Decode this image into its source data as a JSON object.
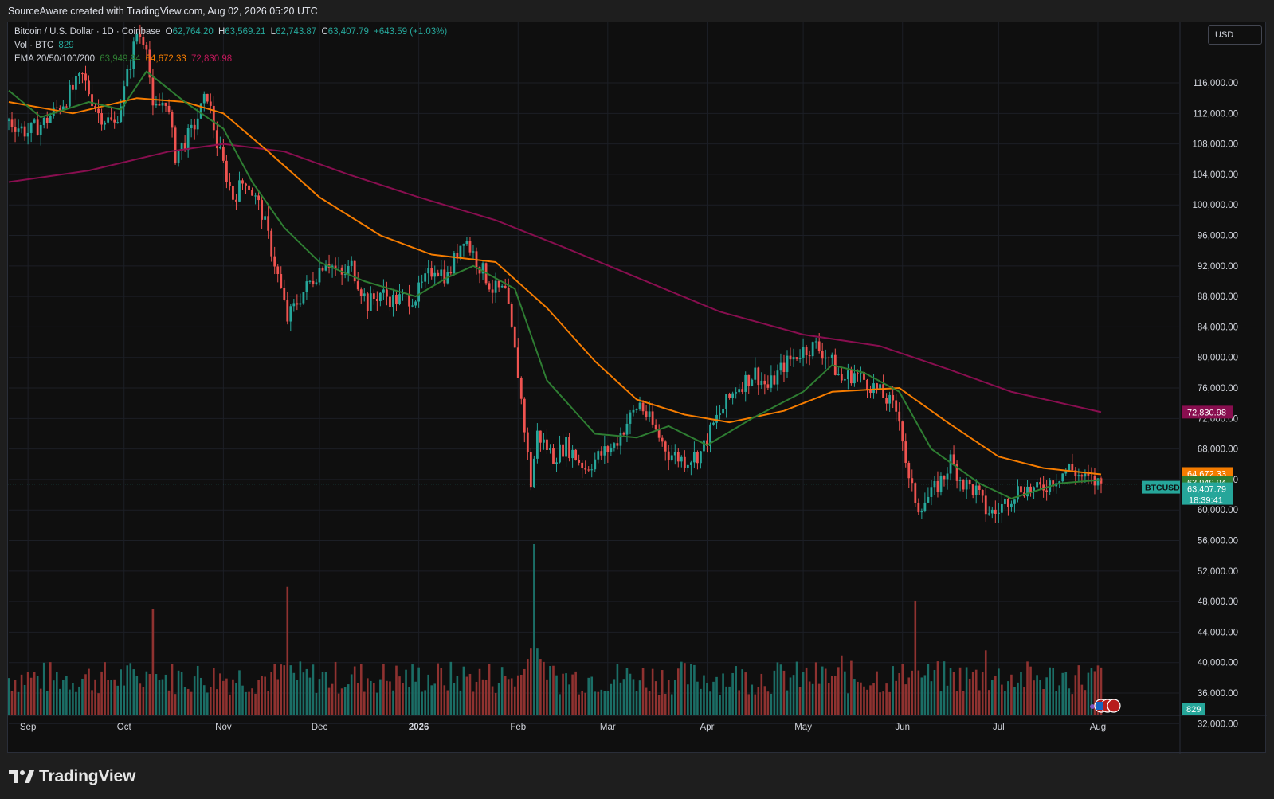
{
  "header": {
    "attribution": "SourceAware created with TradingView.com, Aug 02, 2026 05:20 UTC"
  },
  "legend": {
    "title": "Bitcoin / U.S. Dollar · 1D · Coinbase",
    "o_label": "O",
    "o_value": "62,764.20",
    "h_label": "H",
    "h_value": "63,569.21",
    "l_label": "L",
    "l_value": "62,743.87",
    "c_label": "C",
    "c_value": "63,407.79",
    "change": "+643.59 (+1.03%)",
    "vol_label": "Vol · BTC",
    "vol_value": "829",
    "ema_label": "EMA 20/50/100/200",
    "ema20_value": "63,949.94",
    "ema50_value": "64,672.33",
    "ema200_value": "72,830.98"
  },
  "currency": "USD",
  "symbol_tag": "BTCUSD",
  "countdown": "18:39:41",
  "brand": "TradingView",
  "colors": {
    "up": "#26a69a",
    "down": "#ef5350",
    "ema20": "#2e7d32",
    "ema50": "#f57c00",
    "ema200": "#880e4f",
    "vol_up": "#1b6e66",
    "vol_down": "#8f3230"
  },
  "chart_data": {
    "type": "candlestick",
    "title": "Bitcoin / U.S. Dollar · 1D · Coinbase",
    "y_axis": {
      "ylim": [
        29000,
        122000
      ],
      "ticks": [
        32000,
        36000,
        40000,
        44000,
        48000,
        52000,
        56000,
        60000,
        64000,
        68000,
        72000,
        76000,
        80000,
        84000,
        88000,
        92000,
        96000,
        100000,
        104000,
        108000,
        112000,
        116000
      ],
      "tick_labels": [
        "32,000.00",
        "36,000.00",
        "40,000.00",
        "44,000.00",
        "48,000.00",
        "52,000.00",
        "56,000.00",
        "60,000.00",
        "64,000.00",
        "68,000.00",
        "72,000.00",
        "76,000.00",
        "80,000.00",
        "84,000.00",
        "88,000.00",
        "92,000.00",
        "96,000.00",
        "100,000.00",
        "104,000.00",
        "108,000.00",
        "112,000.00",
        "116,000.00"
      ]
    },
    "x_axis": {
      "start": "2025-08-26",
      "end": "2026-08-02",
      "month_labels": [
        {
          "date": "2025-09-01",
          "label": "Sep"
        },
        {
          "date": "2025-10-01",
          "label": "Oct"
        },
        {
          "date": "2025-11-01",
          "label": "Nov"
        },
        {
          "date": "2025-12-01",
          "label": "Dec"
        },
        {
          "date": "2026-01-01",
          "label": "2026"
        },
        {
          "date": "2026-02-01",
          "label": "Feb"
        },
        {
          "date": "2026-03-01",
          "label": "Mar"
        },
        {
          "date": "2026-04-01",
          "label": "Apr"
        },
        {
          "date": "2026-05-01",
          "label": "May"
        },
        {
          "date": "2026-06-01",
          "label": "Jun"
        },
        {
          "date": "2026-07-01",
          "label": "Jul"
        },
        {
          "date": "2026-08-01",
          "label": "Aug"
        }
      ]
    },
    "close_path": [
      {
        "date": "2025-08-26",
        "close": 111000
      },
      {
        "date": "2025-09-01",
        "close": 109500
      },
      {
        "date": "2025-09-06",
        "close": 110800
      },
      {
        "date": "2025-09-12",
        "close": 113500
      },
      {
        "date": "2025-09-18",
        "close": 116800
      },
      {
        "date": "2025-09-23",
        "close": 112000
      },
      {
        "date": "2025-09-28",
        "close": 110500
      },
      {
        "date": "2025-10-01",
        "close": 115000
      },
      {
        "date": "2025-10-05",
        "close": 122500
      },
      {
        "date": "2025-10-08",
        "close": 121500
      },
      {
        "date": "2025-10-10",
        "close": 112000
      },
      {
        "date": "2025-10-14",
        "close": 114000
      },
      {
        "date": "2025-10-17",
        "close": 106500
      },
      {
        "date": "2025-10-22",
        "close": 109500
      },
      {
        "date": "2025-10-27",
        "close": 114500
      },
      {
        "date": "2025-10-30",
        "close": 108000
      },
      {
        "date": "2025-11-04",
        "close": 101000
      },
      {
        "date": "2025-11-08",
        "close": 103500
      },
      {
        "date": "2025-11-13",
        "close": 99000
      },
      {
        "date": "2025-11-17",
        "close": 92500
      },
      {
        "date": "2025-11-21",
        "close": 85000
      },
      {
        "date": "2025-11-25",
        "close": 88000
      },
      {
        "date": "2025-11-30",
        "close": 91000
      },
      {
        "date": "2025-12-03",
        "close": 93000
      },
      {
        "date": "2025-12-08",
        "close": 90500
      },
      {
        "date": "2025-12-11",
        "close": 92000
      },
      {
        "date": "2025-12-16",
        "close": 87000
      },
      {
        "date": "2025-12-20",
        "close": 88500
      },
      {
        "date": "2025-12-24",
        "close": 87500
      },
      {
        "date": "2025-12-31",
        "close": 88000
      },
      {
        "date": "2026-01-06",
        "close": 92000
      },
      {
        "date": "2026-01-10",
        "close": 90500
      },
      {
        "date": "2026-01-15",
        "close": 96000
      },
      {
        "date": "2026-01-20",
        "close": 92000
      },
      {
        "date": "2026-01-24",
        "close": 89000
      },
      {
        "date": "2026-01-28",
        "close": 88500
      },
      {
        "date": "2026-02-01",
        "close": 78000
      },
      {
        "date": "2026-02-05",
        "close": 63500
      },
      {
        "date": "2026-02-07",
        "close": 70000
      },
      {
        "date": "2026-02-12",
        "close": 67000
      },
      {
        "date": "2026-02-16",
        "close": 68500
      },
      {
        "date": "2026-02-22",
        "close": 65500
      },
      {
        "date": "2026-02-26",
        "close": 67000
      },
      {
        "date": "2026-03-03",
        "close": 68500
      },
      {
        "date": "2026-03-07",
        "close": 71500
      },
      {
        "date": "2026-03-11",
        "close": 74000
      },
      {
        "date": "2026-03-15",
        "close": 71000
      },
      {
        "date": "2026-03-20",
        "close": 67500
      },
      {
        "date": "2026-03-25",
        "close": 66500
      },
      {
        "date": "2026-03-30",
        "close": 67500
      },
      {
        "date": "2026-04-04",
        "close": 72000
      },
      {
        "date": "2026-04-10",
        "close": 76000
      },
      {
        "date": "2026-04-16",
        "close": 78000
      },
      {
        "date": "2026-04-20",
        "close": 76000
      },
      {
        "date": "2026-04-25",
        "close": 79000
      },
      {
        "date": "2026-05-01",
        "close": 81000
      },
      {
        "date": "2026-05-05",
        "close": 81500
      },
      {
        "date": "2026-05-09",
        "close": 80000
      },
      {
        "date": "2026-05-13",
        "close": 77000
      },
      {
        "date": "2026-05-17",
        "close": 78000
      },
      {
        "date": "2026-05-22",
        "close": 76500
      },
      {
        "date": "2026-05-27",
        "close": 74500
      },
      {
        "date": "2026-05-31",
        "close": 72500
      },
      {
        "date": "2026-06-03",
        "close": 63500
      },
      {
        "date": "2026-06-06",
        "close": 60500
      },
      {
        "date": "2026-06-10",
        "close": 62000
      },
      {
        "date": "2026-06-14",
        "close": 64500
      },
      {
        "date": "2026-06-16",
        "close": 66500
      },
      {
        "date": "2026-06-20",
        "close": 63500
      },
      {
        "date": "2026-06-24",
        "close": 62500
      },
      {
        "date": "2026-06-27",
        "close": 60000
      },
      {
        "date": "2026-06-30",
        "close": 59500
      },
      {
        "date": "2026-07-04",
        "close": 61500
      },
      {
        "date": "2026-07-08",
        "close": 63000
      },
      {
        "date": "2026-07-13",
        "close": 62500
      },
      {
        "date": "2026-07-18",
        "close": 64000
      },
      {
        "date": "2026-07-23",
        "close": 65500
      },
      {
        "date": "2026-07-28",
        "close": 64000
      },
      {
        "date": "2026-08-02",
        "close": 63408
      }
    ],
    "ema20": [
      {
        "date": "2025-08-26",
        "v": 115000
      },
      {
        "date": "2025-09-05",
        "v": 111500
      },
      {
        "date": "2025-09-20",
        "v": 113500
      },
      {
        "date": "2025-09-30",
        "v": 112500
      },
      {
        "date": "2025-10-08",
        "v": 117500
      },
      {
        "date": "2025-10-20",
        "v": 113500
      },
      {
        "date": "2025-11-01",
        "v": 110000
      },
      {
        "date": "2025-11-10",
        "v": 103000
      },
      {
        "date": "2025-11-20",
        "v": 97000
      },
      {
        "date": "2025-12-01",
        "v": 92500
      },
      {
        "date": "2025-12-15",
        "v": 90000
      },
      {
        "date": "2025-12-31",
        "v": 88000
      },
      {
        "date": "2026-01-10",
        "v": 90500
      },
      {
        "date": "2026-01-18",
        "v": 92000
      },
      {
        "date": "2026-01-31",
        "v": 89000
      },
      {
        "date": "2026-02-10",
        "v": 77000
      },
      {
        "date": "2026-02-25",
        "v": 70000
      },
      {
        "date": "2026-03-10",
        "v": 69500
      },
      {
        "date": "2026-03-20",
        "v": 71000
      },
      {
        "date": "2026-04-01",
        "v": 68500
      },
      {
        "date": "2026-04-15",
        "v": 72000
      },
      {
        "date": "2026-05-01",
        "v": 75500
      },
      {
        "date": "2026-05-10",
        "v": 79000
      },
      {
        "date": "2026-05-20",
        "v": 78000
      },
      {
        "date": "2026-05-31",
        "v": 75500
      },
      {
        "date": "2026-06-10",
        "v": 68000
      },
      {
        "date": "2026-06-25",
        "v": 63500
      },
      {
        "date": "2026-07-05",
        "v": 61500
      },
      {
        "date": "2026-07-20",
        "v": 63500
      },
      {
        "date": "2026-08-02",
        "v": 63950
      }
    ],
    "ema50": [
      {
        "date": "2025-08-26",
        "v": 113500
      },
      {
        "date": "2025-09-15",
        "v": 112000
      },
      {
        "date": "2025-10-05",
        "v": 114000
      },
      {
        "date": "2025-10-20",
        "v": 113500
      },
      {
        "date": "2025-11-01",
        "v": 112000
      },
      {
        "date": "2025-11-15",
        "v": 107000
      },
      {
        "date": "2025-12-01",
        "v": 101000
      },
      {
        "date": "2025-12-20",
        "v": 96000
      },
      {
        "date": "2026-01-05",
        "v": 93500
      },
      {
        "date": "2026-01-25",
        "v": 92500
      },
      {
        "date": "2026-02-10",
        "v": 86500
      },
      {
        "date": "2026-02-25",
        "v": 79500
      },
      {
        "date": "2026-03-10",
        "v": 74500
      },
      {
        "date": "2026-03-25",
        "v": 72500
      },
      {
        "date": "2026-04-08",
        "v": 71500
      },
      {
        "date": "2026-04-25",
        "v": 73000
      },
      {
        "date": "2026-05-10",
        "v": 75500
      },
      {
        "date": "2026-05-31",
        "v": 76000
      },
      {
        "date": "2026-06-15",
        "v": 71500
      },
      {
        "date": "2026-07-01",
        "v": 67000
      },
      {
        "date": "2026-07-15",
        "v": 65500
      },
      {
        "date": "2026-08-02",
        "v": 64672
      }
    ],
    "ema200": [
      {
        "date": "2025-08-26",
        "v": 103000
      },
      {
        "date": "2025-09-20",
        "v": 104500
      },
      {
        "date": "2025-10-15",
        "v": 107000
      },
      {
        "date": "2025-11-01",
        "v": 108000
      },
      {
        "date": "2025-11-20",
        "v": 107000
      },
      {
        "date": "2025-12-10",
        "v": 104000
      },
      {
        "date": "2026-01-01",
        "v": 101000
      },
      {
        "date": "2026-01-25",
        "v": 98000
      },
      {
        "date": "2026-02-15",
        "v": 94500
      },
      {
        "date": "2026-03-10",
        "v": 90500
      },
      {
        "date": "2026-04-05",
        "v": 86000
      },
      {
        "date": "2026-05-01",
        "v": 83000
      },
      {
        "date": "2026-05-25",
        "v": 81500
      },
      {
        "date": "2026-06-15",
        "v": 78500
      },
      {
        "date": "2026-07-05",
        "v": 75500
      },
      {
        "date": "2026-08-02",
        "v": 72831
      }
    ],
    "price_labels": [
      {
        "value": 72830.98,
        "text": "72,830.98",
        "color": "#880e4f"
      },
      {
        "value": 64672.33,
        "text": "64,672.33",
        "color": "#f57c00"
      },
      {
        "value": 63949.94,
        "text": "63,949.94",
        "color": "#2e7d32"
      },
      {
        "value": 63407.79,
        "text": "63,407.79",
        "color": "#26a69a"
      }
    ],
    "volume": {
      "last": 829,
      "last_label": "829",
      "spikes": [
        {
          "date": "2025-10-10",
          "rel": 0.62
        },
        {
          "date": "2025-11-21",
          "rel": 0.75
        },
        {
          "date": "2026-02-06",
          "rel": 1.0
        },
        {
          "date": "2026-06-05",
          "rel": 0.67
        },
        {
          "date": "2026-06-27",
          "rel": 0.38
        },
        {
          "date": "2026-05-13",
          "rel": 0.35
        }
      ]
    }
  }
}
